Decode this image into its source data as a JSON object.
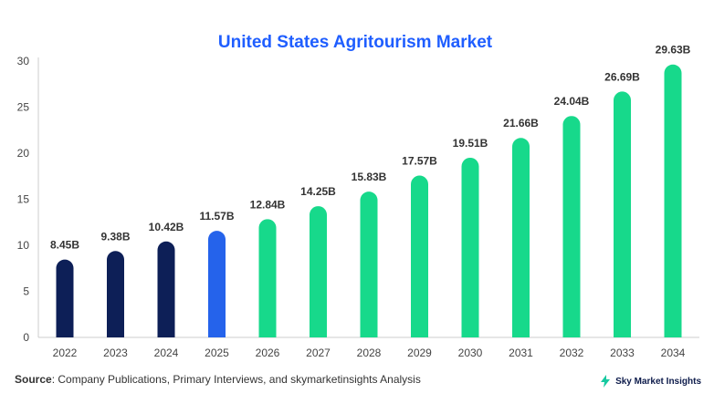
{
  "colors": {
    "title": "#1f5eff",
    "historical": "#0d1f57",
    "current": "#2563eb",
    "forecast": "#17d98b",
    "axis": "#cccccc",
    "grid": "#e6e6e6",
    "logo": "#17c9a0"
  },
  "chart_data": {
    "type": "bar",
    "title": "United States Agritourism Market",
    "xlabel": "",
    "ylabel": "",
    "ylim": [
      0,
      30
    ],
    "yticks": [
      0,
      5,
      10,
      15,
      20,
      25,
      30
    ],
    "grid": false,
    "categories": [
      "2022",
      "2023",
      "2024",
      "2025",
      "2026",
      "2027",
      "2028",
      "2029",
      "2030",
      "2031",
      "2032",
      "2033",
      "2034"
    ],
    "values": [
      8.45,
      9.38,
      10.42,
      11.57,
      12.84,
      14.25,
      15.83,
      17.57,
      19.51,
      21.66,
      24.04,
      26.69,
      29.63
    ],
    "labels": [
      "8.45B",
      "9.38B",
      "10.42B",
      "11.57B",
      "12.84B",
      "14.25B",
      "15.83B",
      "17.57B",
      "19.51B",
      "21.66B",
      "24.04B",
      "26.69B",
      "29.63B"
    ],
    "bar_color_groups": [
      "historical",
      "historical",
      "historical",
      "current",
      "forecast",
      "forecast",
      "forecast",
      "forecast",
      "forecast",
      "forecast",
      "forecast",
      "forecast",
      "forecast"
    ]
  },
  "footer": {
    "source_label": "Source",
    "source_text": ": Company Publications, Primary Interviews, and skymarketinsights Analysis"
  },
  "brand": {
    "name": "Sky Market Insights",
    "logo_icon": "lightning-bolt-icon"
  }
}
